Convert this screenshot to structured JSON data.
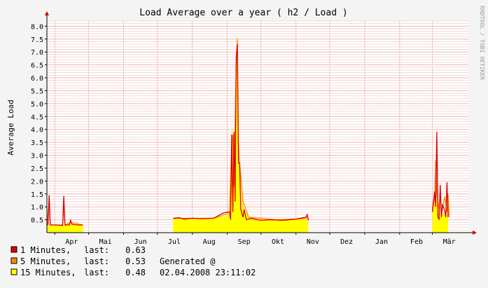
{
  "chart_data": {
    "type": "area",
    "title": "Load Average over a year ( h2 / Load )",
    "ylabel": "Average Load",
    "watermark": "RRDTOOL / TOBI OETIKER",
    "ylim": [
      0,
      8.2
    ],
    "yticks": [
      "0.5",
      "1.0",
      "1.5",
      "2.0",
      "2.5",
      "3.0",
      "3.5",
      "4.0",
      "4.5",
      "5.0",
      "5.5",
      "6.0",
      "6.5",
      "7.0",
      "7.5",
      "8.0"
    ],
    "ytick_values": [
      0.5,
      1.0,
      1.5,
      2.0,
      2.5,
      3.0,
      3.5,
      4.0,
      4.5,
      5.0,
      5.5,
      6.0,
      6.5,
      7.0,
      7.5,
      8.0
    ],
    "grid": true,
    "x_range": [
      "2007-03-25",
      "2008-04-02"
    ],
    "months": [
      {
        "label": "Apr",
        "start": "2007-04-01"
      },
      {
        "label": "Mai",
        "start": "2007-05-01"
      },
      {
        "label": "Jun",
        "start": "2007-06-01"
      },
      {
        "label": "Jul",
        "start": "2007-07-01"
      },
      {
        "label": "Aug",
        "start": "2007-08-01"
      },
      {
        "label": "Sep",
        "start": "2007-09-01"
      },
      {
        "label": "Okt",
        "start": "2007-10-01"
      },
      {
        "label": "Nov",
        "start": "2007-11-01"
      },
      {
        "label": "Dez",
        "start": "2007-12-01"
      },
      {
        "label": "Jan",
        "start": "2008-01-01"
      },
      {
        "label": "Feb",
        "start": "2008-02-01"
      },
      {
        "label": "Mär",
        "start": "2008-03-01"
      }
    ],
    "series": [
      {
        "name": "15 Minutes",
        "color": "#ffff00",
        "style": "area",
        "segments": [
          [
            [
              "2007-03-25",
              0.3
            ],
            [
              "2007-03-31",
              0.3
            ],
            [
              "2007-04-05",
              0.28
            ],
            [
              "2007-04-10",
              0.3
            ],
            [
              "2007-04-15",
              0.33
            ],
            [
              "2007-04-20",
              0.3
            ],
            [
              "2007-04-26",
              0.28
            ]
          ],
          [
            [
              "2007-07-15",
              0.55
            ],
            [
              "2007-07-25",
              0.55
            ],
            [
              "2007-08-05",
              0.52
            ],
            [
              "2007-08-15",
              0.55
            ],
            [
              "2007-08-25",
              0.6
            ],
            [
              "2007-08-30",
              0.65
            ],
            [
              "2007-09-02",
              0.7
            ],
            [
              "2007-09-04",
              1.0
            ],
            [
              "2007-09-05",
              4.1
            ],
            [
              "2007-09-06",
              3.6
            ],
            [
              "2007-09-07",
              2.0
            ],
            [
              "2007-09-08",
              1.5
            ],
            [
              "2007-09-09",
              7.0
            ],
            [
              "2007-09-10",
              7.8
            ],
            [
              "2007-09-11",
              3.0
            ],
            [
              "2007-09-12",
              2.8
            ],
            [
              "2007-09-14",
              1.5
            ],
            [
              "2007-09-16",
              0.9
            ],
            [
              "2007-09-20",
              0.6
            ],
            [
              "2007-09-25",
              0.55
            ],
            [
              "2007-10-05",
              0.5
            ],
            [
              "2007-10-15",
              0.5
            ],
            [
              "2007-10-25",
              0.48
            ],
            [
              "2007-11-05",
              0.52
            ],
            [
              "2007-11-12",
              0.5
            ]
          ],
          [
            [
              "2008-03-01",
              0.7
            ],
            [
              "2008-03-02",
              1.0
            ],
            [
              "2008-03-03",
              1.1
            ],
            [
              "2008-03-04",
              1.2
            ],
            [
              "2008-03-05",
              1.3
            ],
            [
              "2008-03-06",
              1.0
            ],
            [
              "2008-03-07",
              0.85
            ],
            [
              "2008-03-08",
              0.7
            ],
            [
              "2008-03-09",
              0.6
            ],
            [
              "2008-03-10",
              0.7
            ],
            [
              "2008-03-12",
              0.8
            ],
            [
              "2008-03-14",
              0.7
            ],
            [
              "2008-03-15",
              0.6
            ]
          ]
        ]
      },
      {
        "name": "5 Minutes",
        "color": "#ff8800",
        "style": "line",
        "segments": [
          [
            [
              "2007-03-25",
              0.3
            ],
            [
              "2007-03-27",
              1.2
            ],
            [
              "2007-03-28",
              0.3
            ],
            [
              "2007-04-08",
              0.3
            ],
            [
              "2007-04-09",
              1.1
            ],
            [
              "2007-04-10",
              0.3
            ],
            [
              "2007-04-15",
              0.4
            ],
            [
              "2007-04-26",
              0.3
            ]
          ],
          [
            [
              "2007-07-15",
              0.55
            ],
            [
              "2007-08-20",
              0.55
            ],
            [
              "2007-08-30",
              0.7
            ],
            [
              "2007-09-03",
              0.8
            ],
            [
              "2007-09-05",
              3.4
            ],
            [
              "2007-09-06",
              3.8
            ],
            [
              "2007-09-07",
              1.8
            ],
            [
              "2007-09-09",
              6.5
            ],
            [
              "2007-09-10",
              7.5
            ],
            [
              "2007-09-11",
              3.5
            ],
            [
              "2007-09-12",
              2.7
            ],
            [
              "2007-09-15",
              1.2
            ],
            [
              "2007-09-20",
              0.6
            ],
            [
              "2007-10-15",
              0.5
            ],
            [
              "2007-11-12",
              0.55
            ]
          ],
          [
            [
              "2008-03-01",
              0.8
            ],
            [
              "2008-03-03",
              1.3
            ],
            [
              "2008-03-04",
              2.8
            ],
            [
              "2008-03-05",
              1.5
            ],
            [
              "2008-03-07",
              0.9
            ],
            [
              "2008-03-08",
              1.5
            ],
            [
              "2008-03-09",
              0.7
            ],
            [
              "2008-03-12",
              1.4
            ],
            [
              "2008-03-14",
              0.8
            ],
            [
              "2008-03-15",
              1.5
            ],
            [
              "2008-03-16",
              0.6
            ]
          ]
        ]
      },
      {
        "name": "1 Minutes",
        "color": "#dd0000",
        "style": "line",
        "segments": [
          [
            [
              "2007-03-25",
              0.3
            ],
            [
              "2007-03-26",
              0.32
            ],
            [
              "2007-03-27",
              1.45
            ],
            [
              "2007-03-28",
              0.3
            ],
            [
              "2007-04-02",
              0.3
            ],
            [
              "2007-04-08",
              0.28
            ],
            [
              "2007-04-09",
              1.42
            ],
            [
              "2007-04-10",
              0.3
            ],
            [
              "2007-04-14",
              0.3
            ],
            [
              "2007-04-15",
              0.48
            ],
            [
              "2007-04-16",
              0.33
            ],
            [
              "2007-04-20",
              0.3
            ],
            [
              "2007-04-26",
              0.3
            ]
          ],
          [
            [
              "2007-07-15",
              0.55
            ],
            [
              "2007-07-20",
              0.58
            ],
            [
              "2007-07-25",
              0.52
            ],
            [
              "2007-08-01",
              0.56
            ],
            [
              "2007-08-10",
              0.54
            ],
            [
              "2007-08-20",
              0.56
            ],
            [
              "2007-08-28",
              0.75
            ],
            [
              "2007-09-01",
              0.8
            ],
            [
              "2007-09-03",
              0.8
            ],
            [
              "2007-09-04",
              0.5
            ],
            [
              "2007-09-05",
              3.8
            ],
            [
              "2007-09-06",
              0.8
            ],
            [
              "2007-09-07",
              3.9
            ],
            [
              "2007-09-08",
              1.2
            ],
            [
              "2007-09-09",
              6.8
            ],
            [
              "2007-09-10",
              7.3
            ],
            [
              "2007-09-11",
              2.7
            ],
            [
              "2007-09-12",
              2.7
            ],
            [
              "2007-09-13",
              0.9
            ],
            [
              "2007-09-15",
              0.6
            ],
            [
              "2007-09-16",
              0.9
            ],
            [
              "2007-09-18",
              0.5
            ],
            [
              "2007-09-22",
              0.55
            ],
            [
              "2007-10-01",
              0.48
            ],
            [
              "2007-10-10",
              0.5
            ],
            [
              "2007-10-20",
              0.48
            ],
            [
              "2007-11-01",
              0.52
            ],
            [
              "2007-11-10",
              0.6
            ],
            [
              "2007-11-11",
              0.7
            ],
            [
              "2007-11-12",
              0.48
            ]
          ],
          [
            [
              "2008-03-01",
              0.8
            ],
            [
              "2008-03-02",
              1.2
            ],
            [
              "2008-03-03",
              1.6
            ],
            [
              "2008-03-04",
              1.0
            ],
            [
              "2008-03-05",
              3.9
            ],
            [
              "2008-03-06",
              0.6
            ],
            [
              "2008-03-07",
              0.5
            ],
            [
              "2008-03-08",
              1.85
            ],
            [
              "2008-03-09",
              0.6
            ],
            [
              "2008-03-10",
              1.1
            ],
            [
              "2008-03-12",
              0.85
            ],
            [
              "2008-03-13",
              0.6
            ],
            [
              "2008-03-14",
              1.95
            ],
            [
              "2008-03-15",
              0.6
            ]
          ]
        ]
      }
    ]
  },
  "legend": [
    {
      "key": "m1",
      "name": "1 Minutes,",
      "last_label": "last:",
      "last_value": "0.63",
      "color": "#dd0000"
    },
    {
      "key": "m5",
      "name": "5 Minutes,",
      "last_label": "last:",
      "last_value": "0.53",
      "color": "#ff8800",
      "note": "Generated @"
    },
    {
      "key": "m15",
      "name": "15 Minutes,",
      "last_label": "last:",
      "last_value": "0.48",
      "color": "#ffff00",
      "note": "02.04.2008 23:11:02"
    }
  ]
}
